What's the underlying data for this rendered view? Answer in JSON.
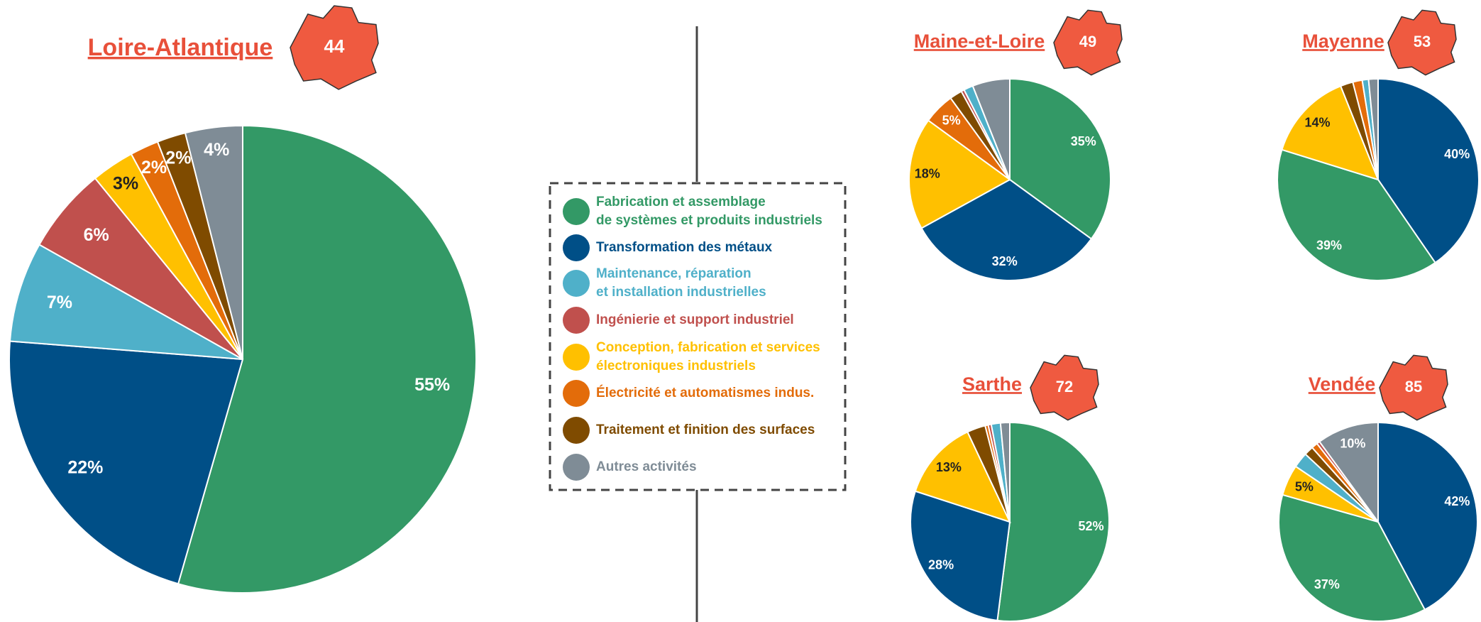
{
  "legend": [
    {
      "name": [
        "Fabrication et assemblage",
        "de systèmes et produits industriels"
      ],
      "color": "#339966"
    },
    {
      "name": [
        "Transformation des métaux"
      ],
      "color": "#004f87"
    },
    {
      "name": [
        "Maintenance, réparation",
        "et installation industrielles"
      ],
      "color": "#4fb0c9"
    },
    {
      "name": [
        "Ingénierie et support industriel"
      ],
      "color": "#c0504d"
    },
    {
      "name": [
        "Conception, fabrication et services",
        "électroniques industriels"
      ],
      "color": "#ffc000"
    },
    {
      "name": [
        "Électricité et automatismes indus."
      ],
      "color": "#e36c0a"
    },
    {
      "name": [
        "Traitement et finition des surfaces"
      ],
      "color": "#7f4b00"
    },
    {
      "name": [
        "Autres activités"
      ],
      "color": "#7f8c96"
    }
  ],
  "chart_data": [
    {
      "type": "pie",
      "title": "Loire-Atlantique",
      "badge": "44",
      "values": [
        55,
        22,
        7,
        6,
        3,
        2,
        2,
        4
      ],
      "value_labels": [
        "55%",
        "22%",
        "7%",
        "6%",
        "3%",
        "2%",
        "2%",
        "4%"
      ],
      "colors": [
        "#339966",
        "#004f87",
        "#4fb0c9",
        "#c0504d",
        "#ffc000",
        "#e36c0a",
        "#7f4b00",
        "#7f8c96"
      ]
    },
    {
      "type": "pie",
      "title": "Maine-et-Loire",
      "badge": "49",
      "values": [
        35,
        32,
        18,
        5,
        2,
        0.5,
        1.5,
        6
      ],
      "value_labels": [
        "35%",
        "32%",
        "18%",
        "5%",
        null,
        null,
        null,
        null
      ],
      "colors": [
        "#339966",
        "#004f87",
        "#ffc000",
        "#e36c0a",
        "#7f4b00",
        "#c0504d",
        "#4fb0c9",
        "#7f8c96"
      ]
    },
    {
      "type": "pie",
      "title": "Mayenne",
      "badge": "53",
      "values": [
        40,
        39,
        14,
        2,
        1.5,
        1,
        1.5
      ],
      "value_labels": [
        "40%",
        "39%",
        "14%",
        null,
        null,
        null,
        null
      ],
      "colors": [
        "#004f87",
        "#339966",
        "#ffc000",
        "#7f4b00",
        "#e36c0a",
        "#4fb0c9",
        "#7f8c96"
      ]
    },
    {
      "type": "pie",
      "title": "Sarthe",
      "badge": "72",
      "values": [
        52,
        28,
        13,
        3,
        0.5,
        0.5,
        1.5,
        1.5
      ],
      "value_labels": [
        "52%",
        "28%",
        "13%",
        null,
        null,
        null,
        null,
        null
      ],
      "colors": [
        "#339966",
        "#004f87",
        "#ffc000",
        "#7f4b00",
        "#e36c0a",
        "#c0504d",
        "#4fb0c9",
        "#7f8c96"
      ]
    },
    {
      "type": "pie",
      "title": "Vendée",
      "badge": "85",
      "values": [
        42,
        37,
        5,
        2.5,
        1.5,
        1,
        0.5,
        10
      ],
      "value_labels": [
        "42%",
        "37%",
        "5%",
        null,
        null,
        null,
        null,
        "10%"
      ],
      "colors": [
        "#004f87",
        "#339966",
        "#ffc000",
        "#4fb0c9",
        "#7f4b00",
        "#e36c0a",
        "#c0504d",
        "#7f8c96"
      ]
    }
  ]
}
